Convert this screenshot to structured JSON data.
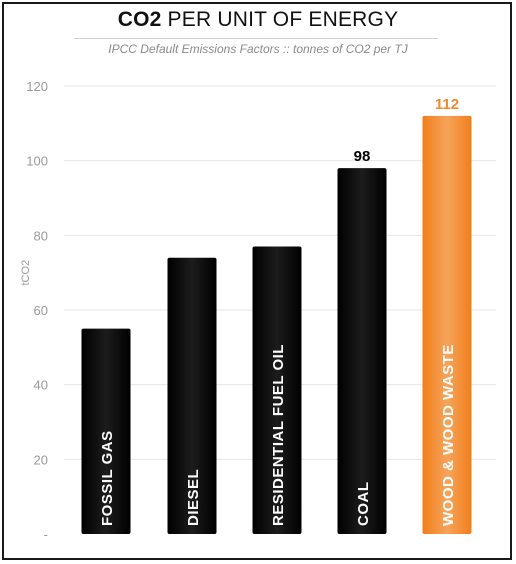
{
  "chart_data": {
    "type": "bar",
    "title_bold": "CO2",
    "title_rest": " PER UNIT OF ENERGY",
    "subtitle": "IPCC Default Emissions Factors :: tonnes of CO2 per TJ",
    "ylabel": "tCO2",
    "ylim": [
      0,
      120
    ],
    "yticks": [
      0,
      20,
      40,
      60,
      80,
      100,
      120
    ],
    "ytick_labels": [
      "-",
      "20",
      "40",
      "60",
      "80",
      "100",
      "120"
    ],
    "grid": true,
    "categories": [
      "FOSSIL GAS",
      "DIESEL",
      "RESIDENTIAL FUEL OIL",
      "COAL",
      "WOOD & WOOD WASTE"
    ],
    "values": [
      55,
      74,
      77,
      98,
      112
    ],
    "data_labels": [
      "",
      "",
      "",
      "98",
      "112"
    ],
    "colors": [
      "#000000",
      "#000000",
      "#000000",
      "#000000",
      "#f08a2a"
    ],
    "data_label_colors": [
      "#000000",
      "#000000",
      "#000000",
      "#000000",
      "#f08a2a"
    ]
  }
}
